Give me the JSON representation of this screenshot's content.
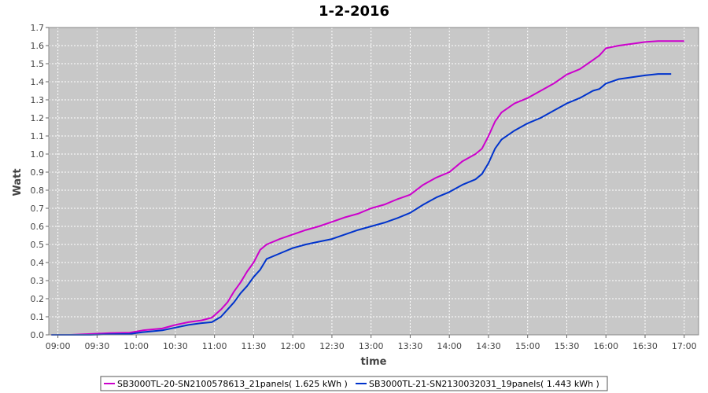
{
  "chart_data": {
    "type": "line",
    "title": "1-2-2016",
    "xlabel": "time",
    "ylabel": "Watt",
    "xlim": [
      "08:53",
      "17:11"
    ],
    "ylim": [
      0.0,
      1.7
    ],
    "x_ticks": [
      "09:00",
      "09:30",
      "10:00",
      "10:30",
      "11:00",
      "11:30",
      "12:00",
      "12:30",
      "13:00",
      "13:30",
      "14:00",
      "14:30",
      "15:00",
      "15:30",
      "16:00",
      "16:30",
      "17:00"
    ],
    "y_ticks": [
      0.0,
      0.1,
      0.2,
      0.3,
      0.4,
      0.5,
      0.6,
      0.7,
      0.8,
      0.9,
      1.0,
      1.1,
      1.2,
      1.3,
      1.4,
      1.5,
      1.6,
      1.7
    ],
    "grid": true,
    "legend_position": "bottom",
    "colors": {
      "plot_background": "#c8c8c8",
      "grid": "#ffffff"
    },
    "series": [
      {
        "name": "SB3000TL-20-SN2100578613_21panels( 1.625 kWh )",
        "color": "#cc00cc",
        "points": [
          [
            "08:55",
            0.0
          ],
          [
            "09:10",
            0.0
          ],
          [
            "09:25",
            0.005
          ],
          [
            "09:40",
            0.01
          ],
          [
            "09:55",
            0.012
          ],
          [
            "10:05",
            0.025
          ],
          [
            "10:20",
            0.035
          ],
          [
            "10:30",
            0.055
          ],
          [
            "10:40",
            0.07
          ],
          [
            "10:50",
            0.08
          ],
          [
            "10:58",
            0.095
          ],
          [
            "11:05",
            0.14
          ],
          [
            "11:10",
            0.18
          ],
          [
            "11:15",
            0.24
          ],
          [
            "11:20",
            0.29
          ],
          [
            "11:25",
            0.35
          ],
          [
            "11:30",
            0.4
          ],
          [
            "11:35",
            0.47
          ],
          [
            "11:40",
            0.5
          ],
          [
            "11:50",
            0.53
          ],
          [
            "12:00",
            0.555
          ],
          [
            "12:10",
            0.58
          ],
          [
            "12:20",
            0.6
          ],
          [
            "12:30",
            0.625
          ],
          [
            "12:40",
            0.65
          ],
          [
            "12:50",
            0.67
          ],
          [
            "13:00",
            0.7
          ],
          [
            "13:10",
            0.72
          ],
          [
            "13:20",
            0.75
          ],
          [
            "13:30",
            0.775
          ],
          [
            "13:40",
            0.83
          ],
          [
            "13:50",
            0.87
          ],
          [
            "14:00",
            0.9
          ],
          [
            "14:10",
            0.96
          ],
          [
            "14:20",
            1.0
          ],
          [
            "14:25",
            1.03
          ],
          [
            "14:30",
            1.1
          ],
          [
            "14:35",
            1.18
          ],
          [
            "14:40",
            1.23
          ],
          [
            "14:50",
            1.28
          ],
          [
            "15:00",
            1.31
          ],
          [
            "15:10",
            1.35
          ],
          [
            "15:20",
            1.39
          ],
          [
            "15:30",
            1.44
          ],
          [
            "15:40",
            1.47
          ],
          [
            "15:50",
            1.52
          ],
          [
            "15:55",
            1.545
          ],
          [
            "16:00",
            1.585
          ],
          [
            "16:10",
            1.6
          ],
          [
            "16:20",
            1.61
          ],
          [
            "16:30",
            1.62
          ],
          [
            "16:40",
            1.625
          ],
          [
            "16:50",
            1.625
          ],
          [
            "17:00",
            1.625
          ]
        ]
      },
      {
        "name": "SB3000TL-21-SN2130032031_19panels( 1.443 kWh )",
        "color": "#0033cc",
        "points": [
          [
            "08:55",
            0.0
          ],
          [
            "09:10",
            0.0
          ],
          [
            "09:25",
            0.0
          ],
          [
            "09:40",
            0.003
          ],
          [
            "09:55",
            0.005
          ],
          [
            "10:05",
            0.015
          ],
          [
            "10:20",
            0.025
          ],
          [
            "10:30",
            0.04
          ],
          [
            "10:40",
            0.055
          ],
          [
            "10:50",
            0.065
          ],
          [
            "10:58",
            0.07
          ],
          [
            "11:05",
            0.1
          ],
          [
            "11:10",
            0.14
          ],
          [
            "11:15",
            0.18
          ],
          [
            "11:20",
            0.23
          ],
          [
            "11:25",
            0.27
          ],
          [
            "11:30",
            0.32
          ],
          [
            "11:35",
            0.36
          ],
          [
            "11:40",
            0.42
          ],
          [
            "11:50",
            0.45
          ],
          [
            "12:00",
            0.48
          ],
          [
            "12:10",
            0.5
          ],
          [
            "12:20",
            0.515
          ],
          [
            "12:30",
            0.53
          ],
          [
            "12:40",
            0.555
          ],
          [
            "12:50",
            0.58
          ],
          [
            "13:00",
            0.6
          ],
          [
            "13:10",
            0.62
          ],
          [
            "13:20",
            0.645
          ],
          [
            "13:30",
            0.675
          ],
          [
            "13:40",
            0.72
          ],
          [
            "13:50",
            0.76
          ],
          [
            "14:00",
            0.79
          ],
          [
            "14:10",
            0.83
          ],
          [
            "14:20",
            0.86
          ],
          [
            "14:25",
            0.89
          ],
          [
            "14:30",
            0.95
          ],
          [
            "14:35",
            1.03
          ],
          [
            "14:40",
            1.08
          ],
          [
            "14:50",
            1.13
          ],
          [
            "15:00",
            1.17
          ],
          [
            "15:10",
            1.2
          ],
          [
            "15:20",
            1.24
          ],
          [
            "15:30",
            1.28
          ],
          [
            "15:40",
            1.31
          ],
          [
            "15:50",
            1.35
          ],
          [
            "15:55",
            1.36
          ],
          [
            "16:00",
            1.39
          ],
          [
            "16:10",
            1.415
          ],
          [
            "16:20",
            1.425
          ],
          [
            "16:30",
            1.435
          ],
          [
            "16:40",
            1.443
          ],
          [
            "16:50",
            1.443
          ]
        ]
      }
    ]
  }
}
